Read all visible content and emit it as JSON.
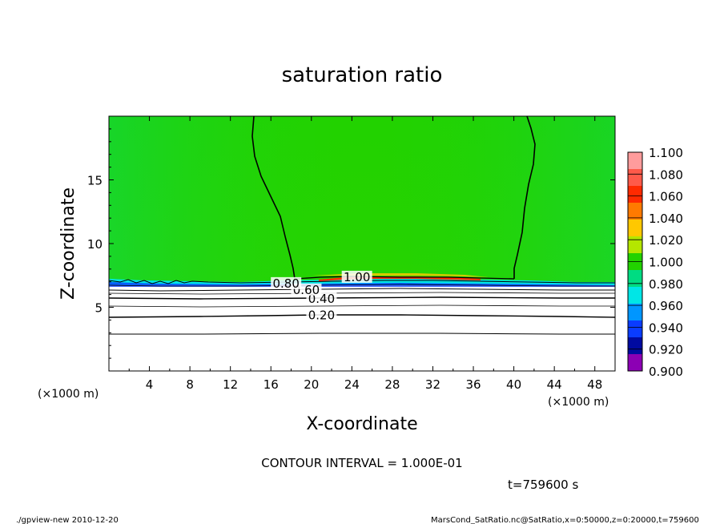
{
  "chart_data": {
    "type": "heatmap",
    "title": "saturation ratio",
    "xlabel": "X-coordinate",
    "ylabel": "Z-coordinate",
    "x_unit": "(×1000 m)",
    "y_unit": "(×1000 m)",
    "xlim": [
      0,
      50
    ],
    "ylim": [
      0,
      20
    ],
    "x_ticks": [
      "4",
      "8",
      "12",
      "16",
      "20",
      "24",
      "28",
      "32",
      "36",
      "40",
      "44",
      "48"
    ],
    "y_ticks": [
      "5",
      "10",
      "15"
    ],
    "colorbar": {
      "levels": [
        "1.100",
        "1.080",
        "1.060",
        "1.040",
        "1.020",
        "1.000",
        "0.980",
        "0.960",
        "0.940",
        "0.920",
        "0.900"
      ],
      "colors": [
        "#ff9c9c",
        "#ff5a4a",
        "#ff2a00",
        "#ff7a00",
        "#ffc800",
        "#b4e600",
        "#22d200",
        "#00dc82",
        "#00e6e6",
        "#0096ff",
        "#0a3cff",
        "#000aa0",
        "#8c00b4"
      ]
    },
    "contour_labels": [
      {
        "text": "0.20",
        "x": 21,
        "z": 4.3
      },
      {
        "text": "0.40",
        "x": 21,
        "z": 5.6
      },
      {
        "text": "0.60",
        "x": 19.5,
        "z": 6.3
      },
      {
        "text": "0.80",
        "x": 17.5,
        "z": 6.8
      },
      {
        "text": "1.00",
        "x": 24.5,
        "z": 7.3
      }
    ],
    "contour_interval": "CONTOUR INTERVAL = 1.000E-01",
    "time": "t=759600 s"
  },
  "footer": {
    "left": "./gpview-new  2010-12-20",
    "right": "MarsCond_SatRatio.nc@SatRatio,x=0:50000,z=0:20000,t=759600"
  }
}
